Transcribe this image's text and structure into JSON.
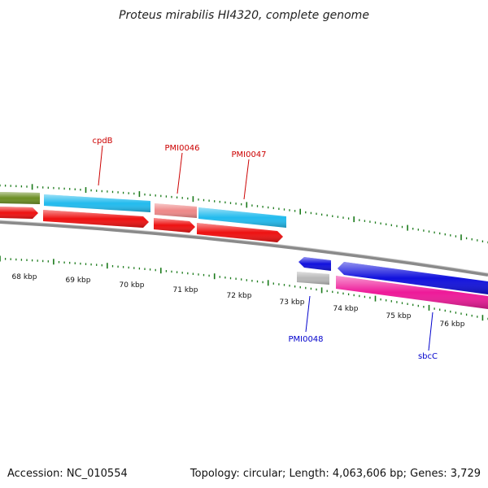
{
  "title": "Proteus mirabilis HI4320, complete genome",
  "footer": {
    "accession": "Accession: NC_010554",
    "summary": "Topology: circular; Length: 4,063,606 bp; Genes: 3,729"
  },
  "colors": {
    "forward_label": "#cc0000",
    "reverse_label": "#0000cc",
    "backbone": "#8a8a8a",
    "tick": "#1a7a1a",
    "cds_cyan": "#22bbee",
    "cds_red": "#ee1111",
    "cds_pink_light": "#ee8888",
    "cds_olive": "#6b8e23",
    "cds_blue": "#1111dd",
    "cds_magenta": "#ee1a99",
    "cds_gray": "#b8b8b8"
  },
  "scale_labels": [
    "68 kbp",
    "69 kbp",
    "70 kbp",
    "71 kbp",
    "72 kbp",
    "73 kbp",
    "74 kbp",
    "75 kbp",
    "76 kbp"
  ],
  "gene_labels": [
    {
      "id": "cpdB",
      "text": "cpdB",
      "strand": "forward"
    },
    {
      "id": "PMI0046",
      "text": "PMI0046",
      "strand": "forward"
    },
    {
      "id": "PMI0047",
      "text": "PMI0047",
      "strand": "forward"
    },
    {
      "id": "PMI0048",
      "text": "PMI0048",
      "strand": "reverse"
    },
    {
      "id": "sbcC",
      "text": "sbcC",
      "strand": "reverse"
    }
  ]
}
